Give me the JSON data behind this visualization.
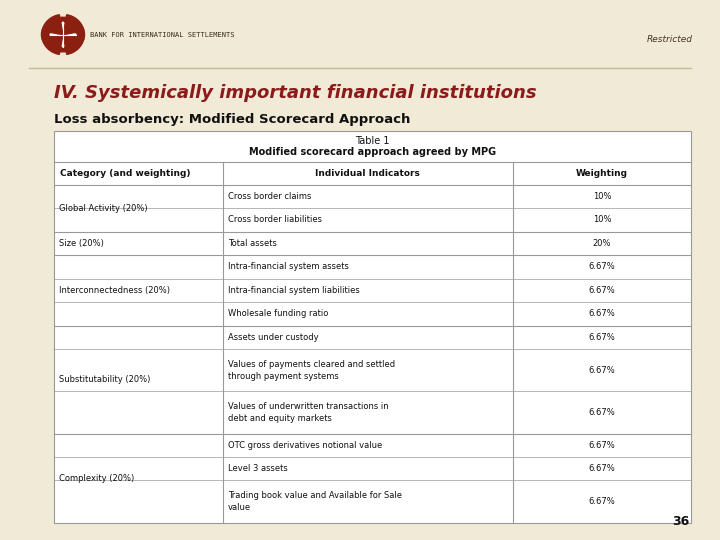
{
  "bg_color": "#f0ead6",
  "slide_title": "IV. Systemically important financial institutions",
  "slide_subtitle": "Loss absorbency: Modified Scorecard Approach",
  "table_title1": "Table 1",
  "table_title2": "Modified scorecard approach agreed by MPG",
  "restricted_text": "Restricted",
  "page_number": "36",
  "col_headers": [
    "Category (and weighting)",
    "Individual Indicators",
    "Weighting"
  ],
  "rows": [
    [
      "Global Activity (20%)",
      "Cross border claims",
      "10%"
    ],
    [
      "",
      "Cross border liabilities",
      "10%"
    ],
    [
      "Size (20%)",
      "Total assets",
      "20%"
    ],
    [
      "Interconnectedness (20%)",
      "Intra-financial system assets",
      "6.67%"
    ],
    [
      "",
      "Intra-financial system liabilities",
      "6.67%"
    ],
    [
      "",
      "Wholesale funding ratio",
      "6.67%"
    ],
    [
      "Substitutability (20%)",
      "Assets under custody",
      "6.67%"
    ],
    [
      "",
      "Values of payments cleared and settled\nthrough payment systems",
      "6.67%"
    ],
    [
      "",
      "Values of underwritten transactions in\ndebt and equity markets",
      "6.67%"
    ],
    [
      "Complexity (20%)",
      "OTC gross derivatives notional value",
      "6.67%"
    ],
    [
      "",
      "Level 3 assets",
      "6.67%"
    ],
    [
      "",
      "Trading book value and Available for Sale\nvalue",
      "6.67%"
    ]
  ],
  "title_color": "#8b1a1a",
  "subtitle_color": "#111111",
  "table_text_color": "#111111",
  "line_color": "#999999",
  "bis_text": "BANK FOR INTERNATIONAL SETTLEMENTS",
  "logo_color": "#8b2010",
  "category_boundaries": [
    0,
    2,
    3,
    6,
    9,
    12
  ]
}
